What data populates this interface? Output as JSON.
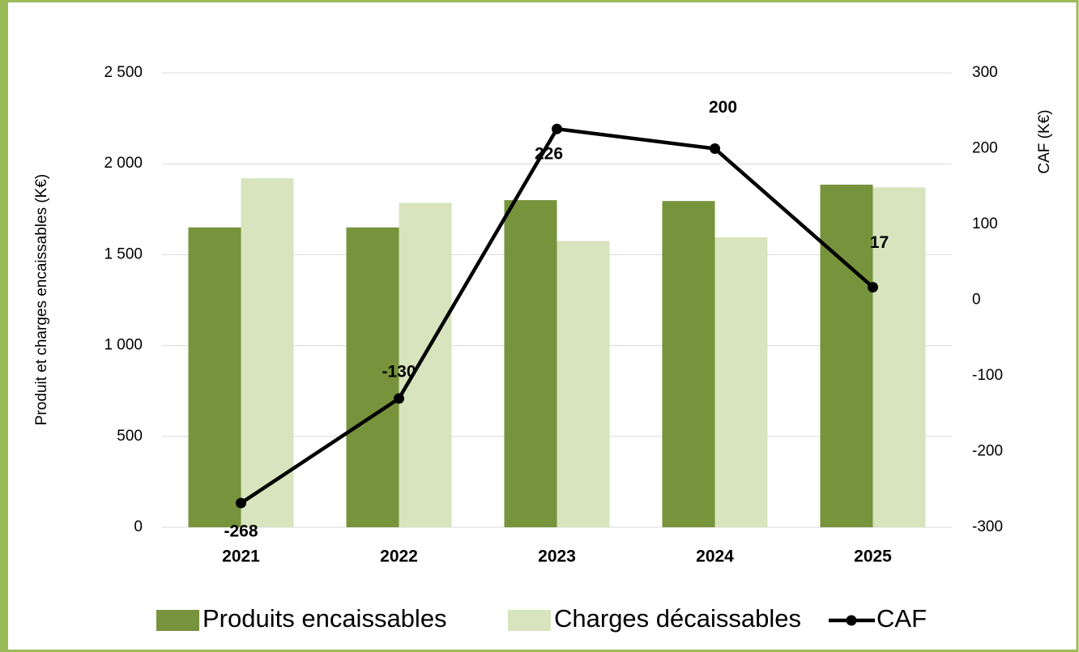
{
  "chart_data": {
    "type": "bar_line",
    "y_label": "Produit et charges encaissables (K€)",
    "y2_label": "CAF (K€)",
    "categories": [
      "2021",
      "2022",
      "2023",
      "2024",
      "2025"
    ],
    "series": [
      {
        "name": "Produits encaissables",
        "color": "#77933c",
        "type": "bar",
        "values": [
          1650,
          1650,
          1800,
          1795,
          1885
        ]
      },
      {
        "name": "Charges décaissables",
        "color": "#d7e4bd",
        "type": "bar",
        "values": [
          1920,
          1785,
          1575,
          1595,
          1870
        ]
      },
      {
        "name": "CAF",
        "color": "#000000",
        "type": "line",
        "axis": "y2",
        "values": [
          -268,
          -130,
          226,
          200,
          17
        ]
      }
    ],
    "ylim": [
      0,
      2500
    ],
    "yticks": [
      0,
      {
        "value": 500,
        "label": "500"
      },
      {
        "value": 1000,
        "label": "1 000"
      },
      {
        "value": 1500,
        "label": "1 500"
      },
      {
        "value": 2000,
        "label": "2 000"
      },
      {
        "value": 2500,
        "label": "2 500"
      }
    ],
    "y2lim": [
      -300,
      300
    ],
    "y2ticks": [
      -300,
      -200,
      -100,
      0,
      100,
      200,
      300
    ],
    "grid": true,
    "legend": "bottom"
  }
}
